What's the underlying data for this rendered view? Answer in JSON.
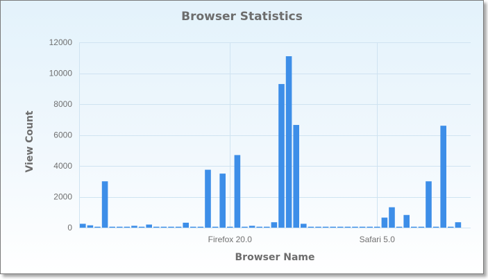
{
  "chart_data": {
    "type": "bar",
    "title": "Browser Statistics",
    "xlabel": "Browser Name",
    "ylabel": "View Count",
    "ylim": [
      0,
      12000
    ],
    "yticks": [
      0,
      2000,
      4000,
      6000,
      8000,
      10000,
      12000
    ],
    "xtick_labels": [
      {
        "label": "Firefox 20.0",
        "index": 20
      },
      {
        "label": "Safari 5.0",
        "index": 40
      }
    ],
    "grid": true,
    "legend": "none",
    "bar_color": "#3d8ee8",
    "series": [
      {
        "values": [
          250,
          150,
          60,
          3000,
          60,
          60,
          60,
          120,
          60,
          200,
          60,
          60,
          60,
          60,
          320,
          60,
          60,
          3750,
          60,
          3500,
          60,
          4700,
          60,
          120,
          60,
          60,
          350,
          9300,
          11100,
          6650,
          250,
          60,
          60,
          60,
          60,
          60,
          60,
          60,
          60,
          60,
          60,
          650,
          1320,
          60,
          820,
          60,
          60,
          3000,
          60,
          6600,
          60,
          350
        ]
      }
    ]
  }
}
